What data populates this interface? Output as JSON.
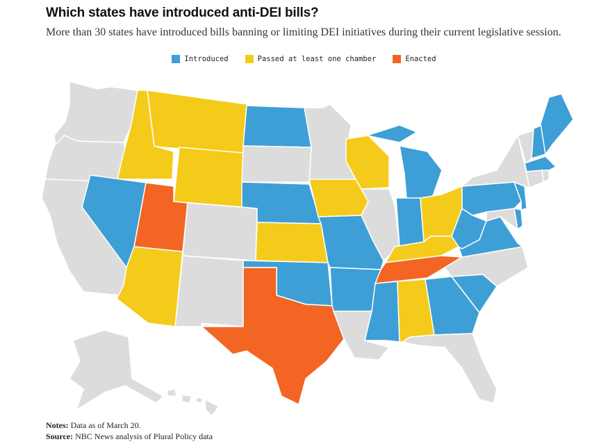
{
  "header": {
    "title": "Which states have introduced anti-DEI bills?",
    "subtitle": "More than 30 states have introduced bills banning or limiting DEI initiatives during their current legislative session."
  },
  "legend": [
    {
      "label": "Introduced",
      "color": "#3d9fd6"
    },
    {
      "label": "Passed at least one chamber",
      "color": "#f5cb1b"
    },
    {
      "label": "Enacted",
      "color": "#f26522"
    }
  ],
  "colors": {
    "introduced": "#3d9fd6",
    "passed": "#f5cb1b",
    "enacted": "#f26522",
    "none": "#dcdcdc",
    "border": "#ffffff"
  },
  "footer": {
    "notes_label": "Notes:",
    "notes_text": " Data as of March 20.",
    "source_label": "Source:",
    "source_text": " NBC News analysis of Plural Policy data"
  },
  "map_data": {
    "Washington": "none",
    "Oregon": "none",
    "California": "none",
    "Idaho": "passed",
    "Montana": "passed",
    "Wyoming": "passed",
    "Nevada": "introduced",
    "Utah": "enacted",
    "Arizona": "passed",
    "Colorado": "none",
    "New Mexico": "none",
    "North Dakota": "introduced",
    "South Dakota": "none",
    "Nebraska": "introduced",
    "Kansas": "passed",
    "Oklahoma": "introduced",
    "Texas": "enacted",
    "Minnesota": "none",
    "Iowa": "passed",
    "Missouri": "introduced",
    "Arkansas": "introduced",
    "Louisiana": "none",
    "Wisconsin": "passed",
    "Illinois": "none",
    "Michigan": "introduced",
    "Indiana": "introduced",
    "Ohio": "passed",
    "Kentucky": "passed",
    "Tennessee": "enacted",
    "Mississippi": "introduced",
    "Alabama": "passed",
    "Georgia": "introduced",
    "Florida": "none",
    "South Carolina": "introduced",
    "North Carolina": "none",
    "Virginia": "introduced",
    "West Virginia": "introduced",
    "Maryland": "none",
    "Delaware": "introduced",
    "Pennsylvania": "introduced",
    "New Jersey": "introduced",
    "New York": "none",
    "Connecticut": "none",
    "Rhode Island": "none",
    "Massachusetts": "introduced",
    "Vermont": "none",
    "New Hampshire": "introduced",
    "Maine": "introduced",
    "Alaska": "none",
    "Hawaii": "none"
  }
}
